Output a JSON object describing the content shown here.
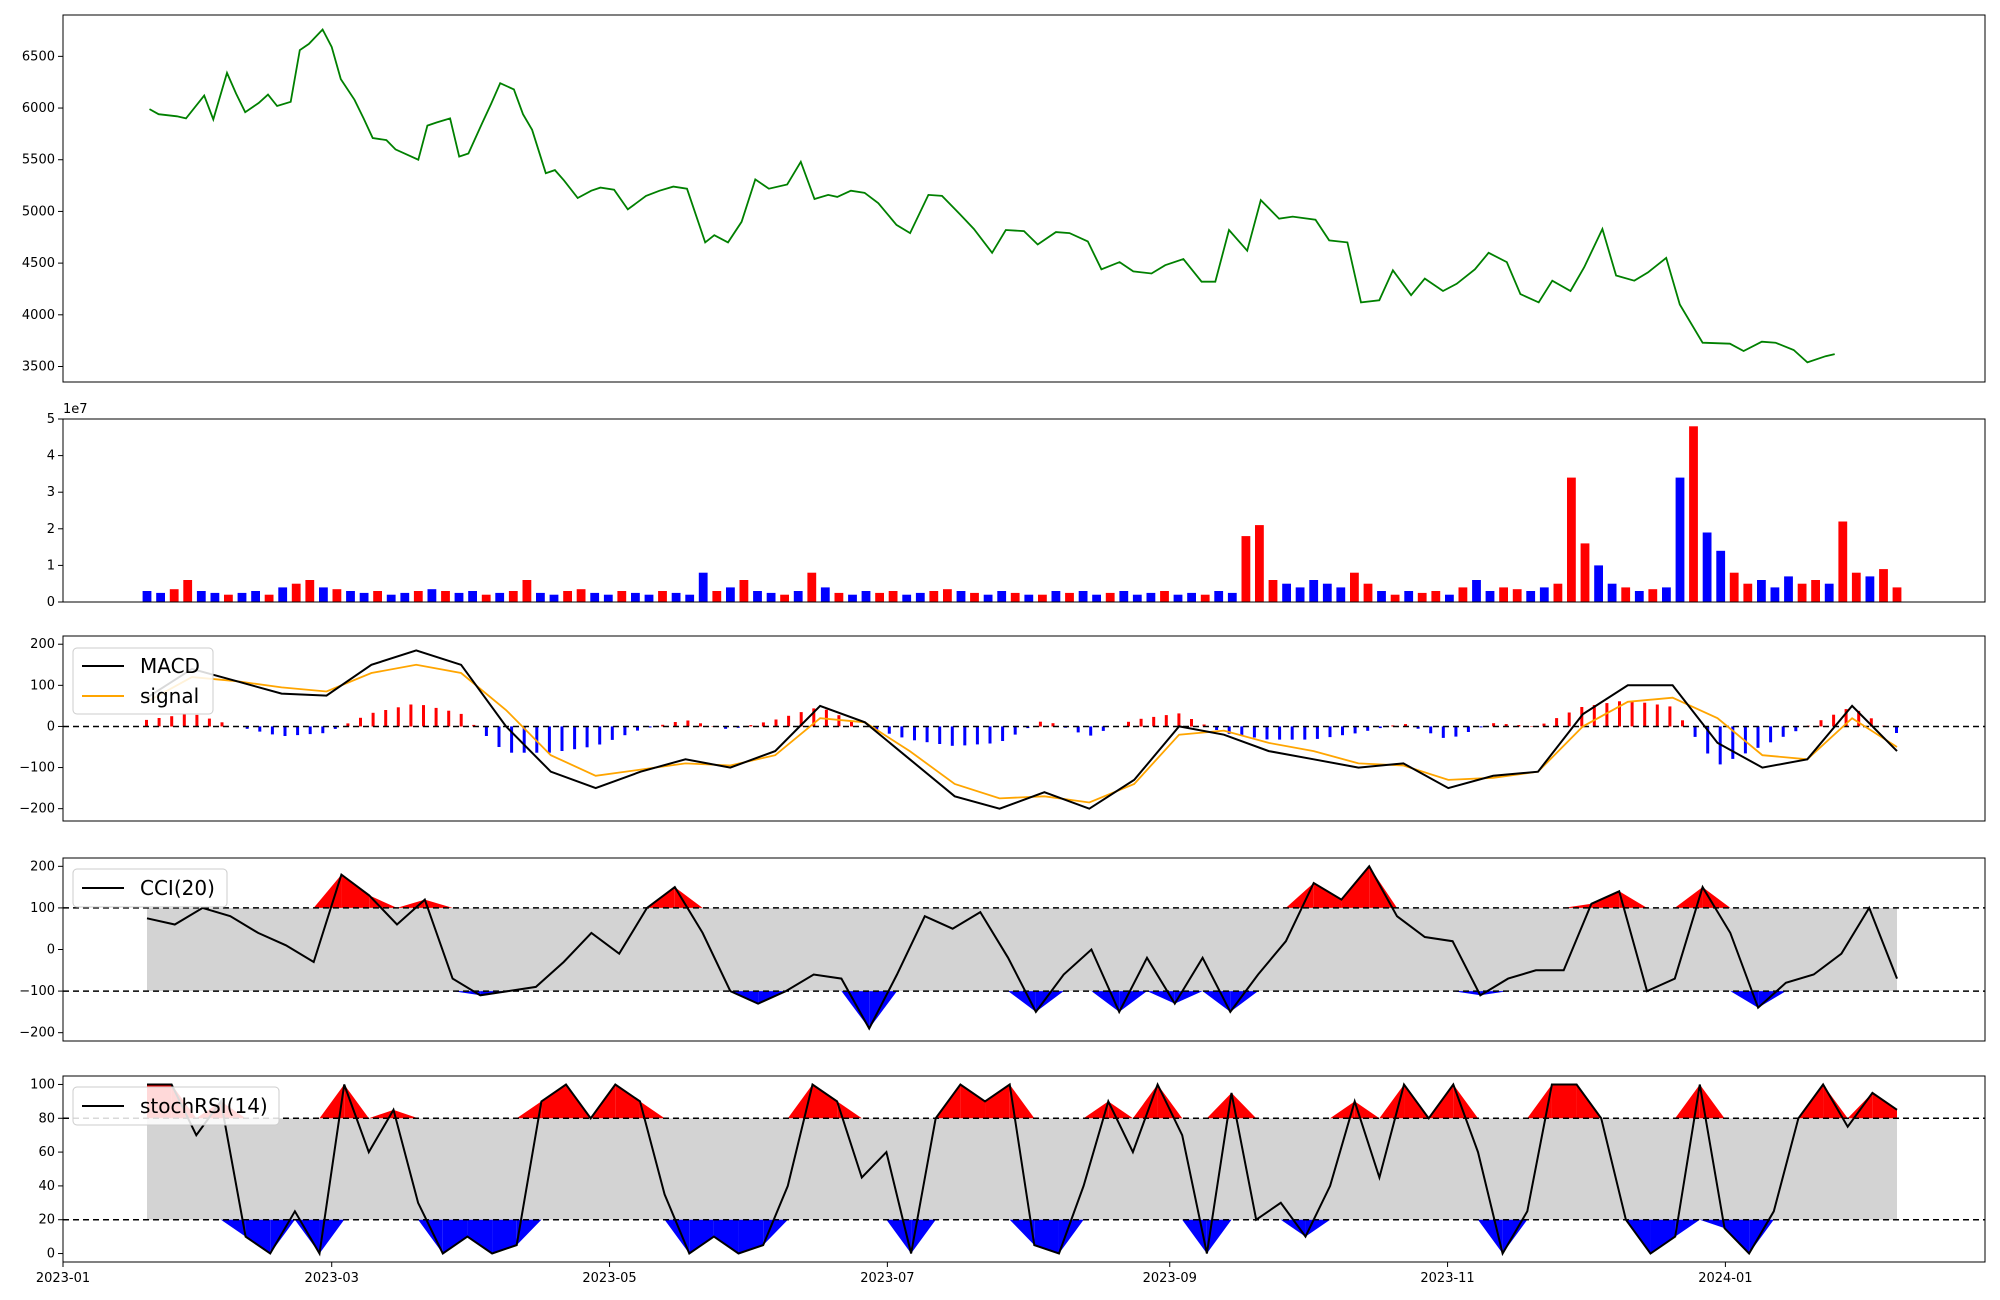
{
  "chart_data": [
    {
      "type": "line",
      "panel": "price",
      "ylim": [
        3350,
        6900
      ],
      "yticks": [
        "3500",
        "4000",
        "4500",
        "5000",
        "5500",
        "6000",
        "6500"
      ],
      "colors": {
        "line": "#008000"
      },
      "series": [
        {
          "x": [
            "2023-01-20",
            "2023-01-22",
            "2023-01-26",
            "2023-01-28",
            "2023-02-01",
            "2023-02-03",
            "2023-02-06",
            "2023-02-08",
            "2023-02-10",
            "2023-02-13",
            "2023-02-15",
            "2023-02-17",
            "2023-02-20",
            "2023-02-22",
            "2023-02-24",
            "2023-02-27",
            "2023-03-01",
            "2023-03-03",
            "2023-03-06",
            "2023-03-08",
            "2023-03-10",
            "2023-03-13",
            "2023-03-15",
            "2023-03-20",
            "2023-03-22",
            "2023-03-24",
            "2023-03-27",
            "2023-03-29",
            "2023-03-31",
            "2023-04-03",
            "2023-04-05",
            "2023-04-07",
            "2023-04-10",
            "2023-04-12",
            "2023-04-14",
            "2023-04-17",
            "2023-04-19",
            "2023-04-21",
            "2023-04-24",
            "2023-04-27",
            "2023-04-29",
            "2023-05-02",
            "2023-05-05",
            "2023-05-09",
            "2023-05-12",
            "2023-05-15",
            "2023-05-18",
            "2023-05-22",
            "2023-05-24",
            "2023-05-27",
            "2023-05-30",
            "2023-06-02",
            "2023-06-05",
            "2023-06-09",
            "2023-06-12",
            "2023-06-15",
            "2023-06-18",
            "2023-06-20",
            "2023-06-23",
            "2023-06-26",
            "2023-06-29",
            "2023-07-03",
            "2023-07-06",
            "2023-07-10",
            "2023-07-13",
            "2023-07-17",
            "2023-07-20",
            "2023-07-24",
            "2023-07-27",
            "2023-07-31",
            "2023-08-03",
            "2023-08-07",
            "2023-08-10",
            "2023-08-14",
            "2023-08-17",
            "2023-08-21",
            "2023-08-24",
            "2023-08-28",
            "2023-08-31",
            "2023-09-04",
            "2023-09-08",
            "2023-09-11",
            "2023-09-14",
            "2023-09-18",
            "2023-09-21",
            "2023-09-25",
            "2023-09-28",
            "2023-10-03",
            "2023-10-06",
            "2023-10-10",
            "2023-10-13",
            "2023-10-17",
            "2023-10-20",
            "2023-10-24",
            "2023-10-27",
            "2023-10-31",
            "2023-11-03",
            "2023-11-07",
            "2023-11-10",
            "2023-11-14",
            "2023-11-17",
            "2023-11-21",
            "2023-11-24",
            "2023-11-28",
            "2023-12-01",
            "2023-12-05",
            "2023-12-08",
            "2023-12-12",
            "2023-12-15",
            "2023-12-19",
            "2023-12-22",
            "2023-12-27",
            "2024-01-02",
            "2024-01-05",
            "2024-01-09",
            "2024-01-12",
            "2024-01-16",
            "2024-01-19",
            "2024-01-23",
            "2024-01-25"
          ],
          "y": [
            5990,
            5940,
            5920,
            5900,
            6120,
            5890,
            6340,
            6140,
            5960,
            6050,
            6130,
            6020,
            6060,
            6560,
            6620,
            6760,
            6590,
            6280,
            6080,
            5900,
            5710,
            5690,
            5600,
            5500,
            5830,
            5860,
            5900,
            5530,
            5560,
            5850,
            6040,
            6240,
            6180,
            5940,
            5790,
            5370,
            5400,
            5300,
            5130,
            5200,
            5230,
            5210,
            5020,
            5150,
            5200,
            5240,
            5220,
            4700,
            4770,
            4700,
            4900,
            5310,
            5220,
            5260,
            5480,
            5120,
            5160,
            5140,
            5200,
            5180,
            5080,
            4870,
            4790,
            5160,
            5150,
            4970,
            4830,
            4600,
            4820,
            4810,
            4680,
            4800,
            4790,
            4710,
            4440,
            4510,
            4420,
            4400,
            4480,
            4540,
            4320,
            4320,
            4820,
            4620,
            5110,
            4930,
            4950,
            4920,
            4720,
            4700,
            4120,
            4140,
            4430,
            4190,
            4350,
            4230,
            4300,
            4440,
            4600,
            4510,
            4200,
            4120,
            4330,
            4230,
            4460,
            4830,
            4380,
            4330,
            4410,
            4550,
            4100,
            3730,
            3720,
            3650,
            3740,
            3730,
            3660,
            3540,
            3600,
            3620
          ]
        }
      ]
    },
    {
      "type": "bar",
      "panel": "volume",
      "ylim": [
        0,
        50000000.0
      ],
      "yticks": [
        "0",
        "1",
        "2",
        "3",
        "4",
        "5"
      ],
      "offset_label": "1e7",
      "colors": {
        "up": "#ff0000",
        "down": "#0000ff"
      },
      "values_1e7": [
        0.3,
        0.25,
        0.35,
        0.6,
        0.3,
        0.25,
        0.2,
        0.25,
        0.3,
        0.2,
        0.4,
        0.5,
        0.6,
        0.4,
        0.35,
        0.3,
        0.25,
        0.3,
        0.2,
        0.25,
        0.3,
        0.35,
        0.3,
        0.25,
        0.3,
        0.2,
        0.25,
        0.3,
        0.6,
        0.25,
        0.2,
        0.3,
        0.35,
        0.25,
        0.2,
        0.3,
        0.25,
        0.2,
        0.3,
        0.25,
        0.2,
        0.8,
        0.3,
        0.4,
        0.6,
        0.3,
        0.25,
        0.2,
        0.3,
        0.8,
        0.4,
        0.25,
        0.2,
        0.3,
        0.25,
        0.3,
        0.2,
        0.25,
        0.3,
        0.35,
        0.3,
        0.25,
        0.2,
        0.3,
        0.25,
        0.2,
        0.2,
        0.3,
        0.25,
        0.3,
        0.2,
        0.25,
        0.3,
        0.2,
        0.25,
        0.3,
        0.2,
        0.25,
        0.2,
        0.3,
        0.25,
        1.8,
        2.1,
        0.6,
        0.5,
        0.4,
        0.6,
        0.5,
        0.4,
        0.8,
        0.5,
        0.3,
        0.2,
        0.3,
        0.25,
        0.3,
        0.2,
        0.4,
        0.6,
        0.3,
        0.4,
        0.35,
        0.3,
        0.4,
        0.5,
        3.4,
        1.6,
        1.0,
        0.5,
        0.4,
        0.3,
        0.35,
        0.4,
        3.4,
        4.8,
        1.9,
        1.4,
        0.8,
        0.5,
        0.6,
        0.4,
        0.7,
        0.5,
        0.6,
        0.5,
        2.2,
        0.8,
        0.7,
        0.9,
        0.4
      ],
      "up": [
        0,
        0,
        1,
        1,
        0,
        0,
        1,
        0,
        0,
        1,
        0,
        1,
        1,
        0,
        1,
        0,
        0,
        1,
        0,
        0,
        1,
        0,
        1,
        0,
        0,
        1,
        0,
        1,
        1,
        0,
        0,
        1,
        1,
        0,
        0,
        1,
        0,
        0,
        1,
        0,
        0,
        0,
        1,
        0,
        1,
        0,
        0,
        1,
        0,
        1,
        0,
        1,
        0,
        0,
        1,
        1,
        0,
        0,
        1,
        1,
        0,
        1,
        0,
        0,
        1,
        0,
        1,
        0,
        1,
        0,
        0,
        1,
        0,
        0,
        0,
        1,
        0,
        0,
        1,
        0,
        0,
        1,
        1,
        1,
        0,
        0,
        0,
        0,
        0,
        1,
        1,
        0,
        1,
        0,
        1,
        1,
        0,
        1,
        0,
        0,
        1,
        1,
        0,
        0,
        1,
        1,
        1,
        0,
        0,
        1,
        0,
        1,
        0,
        0,
        1,
        0,
        0,
        1,
        1,
        0,
        0,
        0,
        1,
        1,
        0,
        1,
        1,
        0,
        1,
        1
      ]
    },
    {
      "type": "line",
      "panel": "macd",
      "ylim": [
        -230,
        220
      ],
      "yticks": [
        "−200",
        "−100",
        "0",
        "100",
        "200"
      ],
      "colors": {
        "macd": "#000000",
        "signal": "#ffa500",
        "hist_up": "#ff0000",
        "hist_down": "#0000ff"
      },
      "series": [
        {
          "name": "MACD",
          "x": [
            0,
            10,
            20,
            30,
            40,
            50,
            60,
            70,
            80,
            90,
            100,
            110,
            120,
            130,
            140,
            150,
            160,
            170,
            180,
            190,
            200,
            210,
            220,
            230,
            240,
            250,
            260,
            270,
            280,
            290,
            300,
            310,
            320,
            330,
            340,
            350,
            360,
            370,
            380,
            390
          ],
          "y": [
            70,
            140,
            110,
            80,
            75,
            150,
            185,
            150,
            0,
            -110,
            -150,
            -110,
            -80,
            -100,
            -60,
            50,
            10,
            -80,
            -170,
            -200,
            -160,
            -200,
            -130,
            0,
            -20,
            -60,
            -80,
            -100,
            -90,
            -150,
            -120,
            -110,
            30,
            100,
            100,
            -40,
            -100,
            -80,
            50,
            -60
          ]
        },
        {
          "name": "signal",
          "x": [
            0,
            10,
            20,
            30,
            40,
            50,
            60,
            70,
            80,
            90,
            100,
            110,
            120,
            130,
            140,
            150,
            160,
            170,
            180,
            190,
            200,
            210,
            220,
            230,
            240,
            250,
            260,
            270,
            280,
            290,
            300,
            310,
            320,
            330,
            340,
            350,
            360,
            370,
            380,
            390
          ],
          "y": [
            60,
            120,
            110,
            95,
            85,
            130,
            150,
            130,
            40,
            -70,
            -120,
            -105,
            -90,
            -95,
            -70,
            20,
            10,
            -60,
            -140,
            -175,
            -170,
            -185,
            -140,
            -20,
            -10,
            -40,
            -60,
            -90,
            -95,
            -130,
            -125,
            -110,
            0,
            60,
            70,
            20,
            -70,
            -80,
            20,
            -50
          ]
        }
      ]
    },
    {
      "type": "line",
      "panel": "cci",
      "ylim": [
        -220,
        220
      ],
      "yticks": [
        "−200",
        "−100",
        "0",
        "100",
        "200"
      ],
      "colors": {
        "line": "#000000",
        "over": "#ff0000",
        "under": "#0000ff",
        "band": "#d3d3d3"
      },
      "series": [
        {
          "name": "CCI(20)",
          "y": [
            75,
            60,
            100,
            80,
            40,
            10,
            -30,
            180,
            130,
            60,
            120,
            -70,
            -110,
            -100,
            -90,
            -30,
            40,
            -10,
            100,
            150,
            40,
            -100,
            -130,
            -100,
            -60,
            -70,
            -190,
            -60,
            80,
            50,
            90,
            -20,
            -150,
            -60,
            0,
            -150,
            -20,
            -130,
            -20,
            -150,
            -60,
            20,
            160,
            120,
            200,
            80,
            30,
            20,
            -110,
            -70,
            -50,
            -50,
            110,
            140,
            -100,
            -70,
            150,
            40,
            -140,
            -80,
            -60,
            -10,
            100,
            -70
          ]
        }
      ]
    },
    {
      "type": "line",
      "panel": "stochrsi",
      "ylim": [
        -5,
        105
      ],
      "yticks": [
        "0",
        "20",
        "40",
        "60",
        "80",
        "100"
      ],
      "xticks": [
        "2023-01",
        "2023-03",
        "2023-05",
        "2023-07",
        "2023-09",
        "2023-11",
        "2024-01"
      ],
      "colors": {
        "line": "#000000",
        "over": "#ff0000",
        "under": "#0000ff",
        "band": "#d3d3d3"
      },
      "series": [
        {
          "name": "stochRSI(14)",
          "y": [
            100,
            100,
            70,
            90,
            10,
            0,
            25,
            0,
            100,
            60,
            85,
            30,
            0,
            10,
            0,
            5,
            90,
            100,
            80,
            100,
            90,
            35,
            0,
            10,
            0,
            5,
            40,
            100,
            90,
            45,
            60,
            0,
            80,
            100,
            90,
            100,
            5,
            0,
            40,
            90,
            60,
            100,
            70,
            0,
            95,
            20,
            30,
            10,
            40,
            90,
            45,
            100,
            80,
            100,
            60,
            0,
            25,
            100,
            100,
            80,
            20,
            0,
            10,
            100,
            15,
            0,
            25,
            80,
            100,
            75,
            95,
            85
          ]
        }
      ]
    }
  ]
}
